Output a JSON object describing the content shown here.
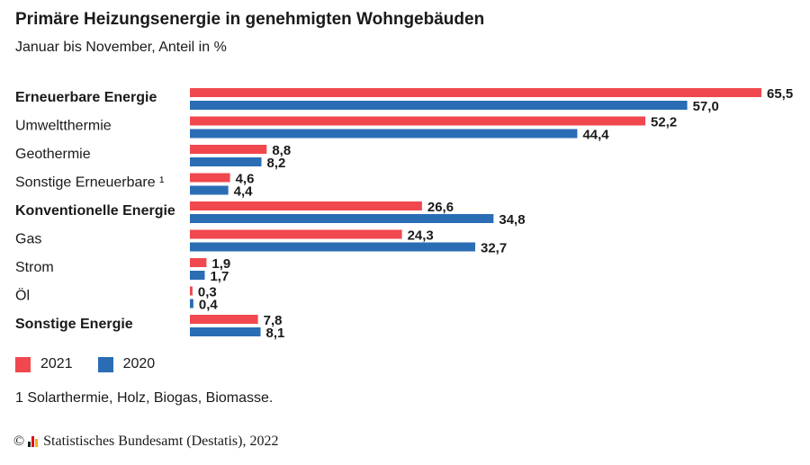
{
  "title": "Primäre Heizungsenergie in genehmigten Wohngebäuden",
  "subtitle": "Januar bis November, Anteil in %",
  "footnote": "1 Solarthermie, Holz, Biogas, Biomasse.",
  "source": {
    "copyright_symbol": "©",
    "text": "Statistisches Bundesamt (Destatis), 2022",
    "logo_icon": "destatis-logo-icon",
    "logo_colors": [
      "#1a1a1a",
      "#e30613",
      "#f6b000"
    ]
  },
  "colors": {
    "2021": "#f0484e",
    "2020": "#2a6db5"
  },
  "chart_data": {
    "type": "bar",
    "orientation": "horizontal",
    "categories": [
      "Erneuerbare Energie",
      "Umweltthermie",
      "Geothermie",
      "Sonstige Erneuerbare ¹",
      "Konventionelle Energie",
      "Gas",
      "Strom",
      "Öl",
      "Sonstige Energie"
    ],
    "bold_categories": [
      "Erneuerbare Energie",
      "Konventionelle Energie",
      "Sonstige Energie"
    ],
    "series": [
      {
        "name": "2021",
        "values": [
          65.5,
          52.2,
          8.8,
          4.6,
          26.6,
          24.3,
          1.9,
          0.3,
          7.8
        ],
        "labels": [
          "65,5",
          "52,2",
          "8,8",
          "4,6",
          "26,6",
          "24,3",
          "1,9",
          "0,3",
          "7,8"
        ]
      },
      {
        "name": "2020",
        "values": [
          57.0,
          44.4,
          8.2,
          4.4,
          34.8,
          32.7,
          1.7,
          0.4,
          8.1
        ],
        "labels": [
          "57,0",
          "44,4",
          "8,2",
          "4,4",
          "34,8",
          "32,7",
          "1,7",
          "0,4",
          "8,1"
        ]
      }
    ],
    "xlim": [
      0,
      65.5
    ],
    "grid": false,
    "legend_position": "bottom-left"
  }
}
